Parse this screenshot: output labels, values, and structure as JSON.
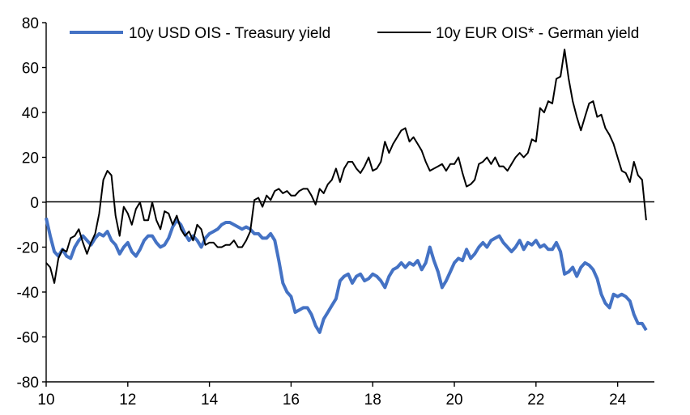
{
  "chart_data": {
    "type": "line",
    "title": "",
    "xlabel": "",
    "ylabel": "",
    "xlim": [
      10,
      24.9
    ],
    "ylim": [
      -80,
      80
    ],
    "x_ticks": [
      10,
      12,
      14,
      16,
      18,
      20,
      22,
      24
    ],
    "x_tick_labels": [
      "10",
      "12",
      "14",
      "16",
      "18",
      "20",
      "22",
      "24"
    ],
    "y_ticks": [
      80,
      60,
      40,
      20,
      0,
      -20,
      -40,
      -60,
      -80
    ],
    "y_tick_labels": [
      "80",
      "60",
      "40",
      "20",
      "0",
      "-20",
      "-40",
      "-60",
      "-80"
    ],
    "grid": false,
    "legend_position": "top",
    "series": [
      {
        "name": "10y USD OIS - Treasury yield",
        "color": "#4472C4",
        "points": [
          [
            10.0,
            -7
          ],
          [
            10.1,
            -15
          ],
          [
            10.2,
            -22
          ],
          [
            10.3,
            -24
          ],
          [
            10.4,
            -21
          ],
          [
            10.5,
            -24
          ],
          [
            10.6,
            -25
          ],
          [
            10.7,
            -20
          ],
          [
            10.8,
            -17
          ],
          [
            10.9,
            -15
          ],
          [
            11.0,
            -17
          ],
          [
            11.1,
            -19
          ],
          [
            11.2,
            -16
          ],
          [
            11.3,
            -14
          ],
          [
            11.4,
            -15
          ],
          [
            11.5,
            -13
          ],
          [
            11.6,
            -17
          ],
          [
            11.7,
            -19
          ],
          [
            11.8,
            -23
          ],
          [
            11.9,
            -20
          ],
          [
            12.0,
            -18
          ],
          [
            12.1,
            -22
          ],
          [
            12.2,
            -24
          ],
          [
            12.3,
            -21
          ],
          [
            12.4,
            -17
          ],
          [
            12.5,
            -15
          ],
          [
            12.6,
            -15
          ],
          [
            12.7,
            -18
          ],
          [
            12.8,
            -20
          ],
          [
            12.9,
            -19
          ],
          [
            13.0,
            -16
          ],
          [
            13.1,
            -11
          ],
          [
            13.2,
            -8
          ],
          [
            13.3,
            -10
          ],
          [
            13.4,
            -14
          ],
          [
            13.5,
            -17
          ],
          [
            13.6,
            -15
          ],
          [
            13.7,
            -17
          ],
          [
            13.8,
            -20
          ],
          [
            13.9,
            -16
          ],
          [
            14.0,
            -14
          ],
          [
            14.1,
            -13
          ],
          [
            14.2,
            -12
          ],
          [
            14.3,
            -10
          ],
          [
            14.4,
            -9
          ],
          [
            14.5,
            -9
          ],
          [
            14.6,
            -10
          ],
          [
            14.7,
            -11
          ],
          [
            14.8,
            -12
          ],
          [
            14.9,
            -11
          ],
          [
            15.0,
            -12
          ],
          [
            15.1,
            -14
          ],
          [
            15.2,
            -14
          ],
          [
            15.3,
            -16
          ],
          [
            15.4,
            -16
          ],
          [
            15.5,
            -14
          ],
          [
            15.6,
            -17
          ],
          [
            15.7,
            -26
          ],
          [
            15.8,
            -36
          ],
          [
            15.9,
            -40
          ],
          [
            16.0,
            -42
          ],
          [
            16.1,
            -49
          ],
          [
            16.2,
            -48
          ],
          [
            16.3,
            -47
          ],
          [
            16.4,
            -47
          ],
          [
            16.5,
            -50
          ],
          [
            16.6,
            -55
          ],
          [
            16.7,
            -58
          ],
          [
            16.8,
            -52
          ],
          [
            16.9,
            -49
          ],
          [
            17.0,
            -46
          ],
          [
            17.1,
            -43
          ],
          [
            17.2,
            -35
          ],
          [
            17.3,
            -33
          ],
          [
            17.4,
            -32
          ],
          [
            17.5,
            -36
          ],
          [
            17.6,
            -33
          ],
          [
            17.7,
            -32
          ],
          [
            17.8,
            -35
          ],
          [
            17.9,
            -34
          ],
          [
            18.0,
            -32
          ],
          [
            18.1,
            -33
          ],
          [
            18.2,
            -35
          ],
          [
            18.3,
            -38
          ],
          [
            18.4,
            -33
          ],
          [
            18.5,
            -30
          ],
          [
            18.6,
            -29
          ],
          [
            18.7,
            -27
          ],
          [
            18.8,
            -29
          ],
          [
            18.9,
            -27
          ],
          [
            19.0,
            -28
          ],
          [
            19.1,
            -26
          ],
          [
            19.2,
            -30
          ],
          [
            19.3,
            -27
          ],
          [
            19.4,
            -20
          ],
          [
            19.5,
            -26
          ],
          [
            19.6,
            -31
          ],
          [
            19.7,
            -38
          ],
          [
            19.8,
            -35
          ],
          [
            19.9,
            -31
          ],
          [
            20.0,
            -27
          ],
          [
            20.1,
            -25
          ],
          [
            20.2,
            -26
          ],
          [
            20.3,
            -21
          ],
          [
            20.4,
            -25
          ],
          [
            20.5,
            -23
          ],
          [
            20.6,
            -20
          ],
          [
            20.7,
            -18
          ],
          [
            20.8,
            -20
          ],
          [
            20.9,
            -17
          ],
          [
            21.0,
            -16
          ],
          [
            21.1,
            -15
          ],
          [
            21.2,
            -18
          ],
          [
            21.3,
            -20
          ],
          [
            21.4,
            -22
          ],
          [
            21.5,
            -20
          ],
          [
            21.6,
            -17
          ],
          [
            21.7,
            -21
          ],
          [
            21.8,
            -18
          ],
          [
            21.9,
            -19
          ],
          [
            22.0,
            -17
          ],
          [
            22.1,
            -20
          ],
          [
            22.2,
            -19
          ],
          [
            22.3,
            -21
          ],
          [
            22.4,
            -21
          ],
          [
            22.5,
            -18
          ],
          [
            22.6,
            -22
          ],
          [
            22.7,
            -32
          ],
          [
            22.8,
            -31
          ],
          [
            22.9,
            -29
          ],
          [
            23.0,
            -33
          ],
          [
            23.1,
            -29
          ],
          [
            23.2,
            -27
          ],
          [
            23.3,
            -28
          ],
          [
            23.4,
            -30
          ],
          [
            23.5,
            -34
          ],
          [
            23.6,
            -41
          ],
          [
            23.7,
            -45
          ],
          [
            23.8,
            -47
          ],
          [
            23.9,
            -41
          ],
          [
            24.0,
            -42
          ],
          [
            24.1,
            -41
          ],
          [
            24.2,
            -42
          ],
          [
            24.3,
            -44
          ],
          [
            24.4,
            -50
          ],
          [
            24.5,
            -54
          ],
          [
            24.6,
            -54
          ],
          [
            24.7,
            -57
          ]
        ]
      },
      {
        "name": "10y EUR OIS* - German yield",
        "color": "#000000",
        "points": [
          [
            10.0,
            -27
          ],
          [
            10.1,
            -29
          ],
          [
            10.2,
            -36
          ],
          [
            10.3,
            -25
          ],
          [
            10.4,
            -21
          ],
          [
            10.5,
            -22
          ],
          [
            10.6,
            -16
          ],
          [
            10.7,
            -15
          ],
          [
            10.8,
            -12
          ],
          [
            10.9,
            -18
          ],
          [
            11.0,
            -23
          ],
          [
            11.1,
            -18
          ],
          [
            11.2,
            -14
          ],
          [
            11.3,
            -5
          ],
          [
            11.4,
            10
          ],
          [
            11.5,
            14
          ],
          [
            11.6,
            12
          ],
          [
            11.7,
            -6
          ],
          [
            11.8,
            -15
          ],
          [
            11.9,
            -2
          ],
          [
            12.0,
            -5
          ],
          [
            12.1,
            -10
          ],
          [
            12.2,
            -3
          ],
          [
            12.3,
            0
          ],
          [
            12.4,
            -8
          ],
          [
            12.5,
            -8
          ],
          [
            12.6,
            0
          ],
          [
            12.7,
            -8
          ],
          [
            12.8,
            -12
          ],
          [
            12.9,
            -4
          ],
          [
            13.0,
            -5
          ],
          [
            13.1,
            -10
          ],
          [
            13.2,
            -6
          ],
          [
            13.3,
            -12
          ],
          [
            13.4,
            -15
          ],
          [
            13.5,
            -13
          ],
          [
            13.6,
            -17
          ],
          [
            13.7,
            -10
          ],
          [
            13.8,
            -12
          ],
          [
            13.9,
            -19
          ],
          [
            14.0,
            -18
          ],
          [
            14.1,
            -18
          ],
          [
            14.2,
            -20
          ],
          [
            14.3,
            -20
          ],
          [
            14.4,
            -19
          ],
          [
            14.5,
            -19
          ],
          [
            14.6,
            -17
          ],
          [
            14.7,
            -20
          ],
          [
            14.8,
            -20
          ],
          [
            14.9,
            -17
          ],
          [
            15.0,
            -13
          ],
          [
            15.1,
            1
          ],
          [
            15.2,
            2
          ],
          [
            15.3,
            -2
          ],
          [
            15.4,
            3
          ],
          [
            15.5,
            1
          ],
          [
            15.6,
            5
          ],
          [
            15.7,
            6
          ],
          [
            15.8,
            4
          ],
          [
            15.9,
            5
          ],
          [
            16.0,
            3
          ],
          [
            16.1,
            3
          ],
          [
            16.2,
            5
          ],
          [
            16.3,
            6
          ],
          [
            16.4,
            6
          ],
          [
            16.5,
            3
          ],
          [
            16.6,
            -1
          ],
          [
            16.7,
            6
          ],
          [
            16.8,
            4
          ],
          [
            16.9,
            8
          ],
          [
            17.0,
            10
          ],
          [
            17.1,
            15
          ],
          [
            17.2,
            9
          ],
          [
            17.3,
            15
          ],
          [
            17.4,
            18
          ],
          [
            17.5,
            18
          ],
          [
            17.6,
            15
          ],
          [
            17.7,
            13
          ],
          [
            17.8,
            16
          ],
          [
            17.9,
            20
          ],
          [
            18.0,
            14
          ],
          [
            18.1,
            15
          ],
          [
            18.2,
            18
          ],
          [
            18.3,
            27
          ],
          [
            18.4,
            22
          ],
          [
            18.5,
            26
          ],
          [
            18.6,
            29
          ],
          [
            18.7,
            32
          ],
          [
            18.8,
            33
          ],
          [
            18.9,
            27
          ],
          [
            19.0,
            29
          ],
          [
            19.1,
            26
          ],
          [
            19.2,
            23
          ],
          [
            19.3,
            18
          ],
          [
            19.4,
            14
          ],
          [
            19.5,
            15
          ],
          [
            19.6,
            16
          ],
          [
            19.7,
            17
          ],
          [
            19.8,
            14
          ],
          [
            19.9,
            17
          ],
          [
            20.0,
            17
          ],
          [
            20.1,
            20
          ],
          [
            20.2,
            13
          ],
          [
            20.3,
            7
          ],
          [
            20.4,
            8
          ],
          [
            20.5,
            10
          ],
          [
            20.6,
            17
          ],
          [
            20.7,
            18
          ],
          [
            20.8,
            20
          ],
          [
            20.9,
            17
          ],
          [
            21.0,
            20
          ],
          [
            21.1,
            16
          ],
          [
            21.2,
            16
          ],
          [
            21.3,
            14
          ],
          [
            21.4,
            17
          ],
          [
            21.5,
            20
          ],
          [
            21.6,
            22
          ],
          [
            21.7,
            20
          ],
          [
            21.8,
            22
          ],
          [
            21.9,
            28
          ],
          [
            22.0,
            27
          ],
          [
            22.1,
            42
          ],
          [
            22.2,
            40
          ],
          [
            22.3,
            45
          ],
          [
            22.4,
            44
          ],
          [
            22.5,
            55
          ],
          [
            22.6,
            56
          ],
          [
            22.7,
            68
          ],
          [
            22.8,
            55
          ],
          [
            22.9,
            45
          ],
          [
            23.0,
            38
          ],
          [
            23.1,
            32
          ],
          [
            23.2,
            38
          ],
          [
            23.3,
            44
          ],
          [
            23.4,
            45
          ],
          [
            23.5,
            38
          ],
          [
            23.6,
            39
          ],
          [
            23.7,
            33
          ],
          [
            23.8,
            30
          ],
          [
            23.9,
            26
          ],
          [
            24.0,
            20
          ],
          [
            24.1,
            14
          ],
          [
            24.2,
            13
          ],
          [
            24.3,
            9
          ],
          [
            24.4,
            18
          ],
          [
            24.5,
            12
          ],
          [
            24.6,
            10
          ],
          [
            24.7,
            -8
          ]
        ]
      }
    ]
  }
}
